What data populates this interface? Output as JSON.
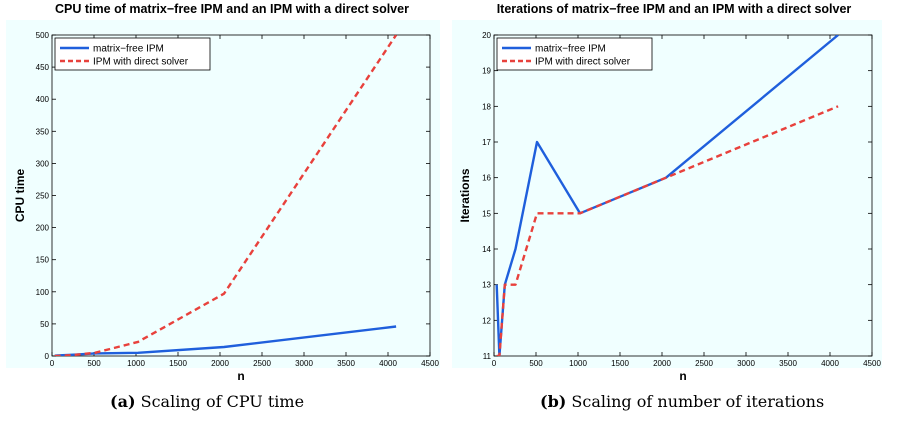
{
  "chart_data": [
    {
      "type": "line",
      "title": "CPU time of matrix−free IPM and an IPM with a direct solver",
      "xlabel": "n",
      "ylabel": "CPU time",
      "xlim": [
        0,
        4500
      ],
      "ylim": [
        0,
        500
      ],
      "xticks": [
        "0",
        "500",
        "1000",
        "1500",
        "2000",
        "2500",
        "3000",
        "3500",
        "4000",
        "4500"
      ],
      "yticks": [
        "0",
        "50",
        "100",
        "150",
        "200",
        "250",
        "300",
        "350",
        "400",
        "450",
        "500"
      ],
      "grid": false,
      "legend": "top-left",
      "background": "#f0ffff",
      "series": [
        {
          "name": "matrix−free IPM",
          "color": "#1f5fdc",
          "style": "solid",
          "x": [
            32,
            64,
            128,
            256,
            512,
            1024,
            2048,
            4096
          ],
          "y": [
            0.5,
            0.8,
            1.2,
            2,
            4,
            5,
            14,
            46
          ]
        },
        {
          "name": "IPM with direct solver",
          "color": "#e8413c",
          "style": "dashed",
          "x": [
            32,
            64,
            128,
            256,
            512,
            1024,
            2048,
            4096
          ],
          "y": [
            0.1,
            0.2,
            0.5,
            1.5,
            5,
            22,
            97,
            500
          ]
        }
      ]
    },
    {
      "type": "line",
      "title": "Iterations of matrix−free IPM and an IPM with a direct solver",
      "xlabel": "n",
      "ylabel": "Iterations",
      "xlim": [
        0,
        4500
      ],
      "ylim": [
        11,
        20
      ],
      "xticks": [
        "0",
        "500",
        "1000",
        "1500",
        "2000",
        "2500",
        "3000",
        "3500",
        "4000",
        "4500"
      ],
      "yticks": [
        "11",
        "12",
        "13",
        "14",
        "15",
        "16",
        "17",
        "18",
        "19",
        "20"
      ],
      "grid": false,
      "legend": "top-left",
      "background": "#f0ffff",
      "series": [
        {
          "name": "matrix−free IPM",
          "color": "#1f5fdc",
          "style": "solid",
          "x": [
            32,
            64,
            128,
            256,
            512,
            1024,
            2048,
            4096
          ],
          "y": [
            13,
            11,
            13,
            14,
            17,
            15,
            16,
            20
          ]
        },
        {
          "name": "IPM with direct solver",
          "color": "#e8413c",
          "style": "dashed",
          "x": [
            32,
            64,
            128,
            256,
            512,
            1024,
            2048,
            4096
          ],
          "y": [
            11,
            11,
            13,
            13,
            15,
            15,
            16,
            18
          ]
        }
      ]
    }
  ],
  "captions": [
    {
      "tag": "(a)",
      "text": "Scaling of CPU time"
    },
    {
      "tag": "(b)",
      "text": "Scaling of number of iterations"
    }
  ]
}
